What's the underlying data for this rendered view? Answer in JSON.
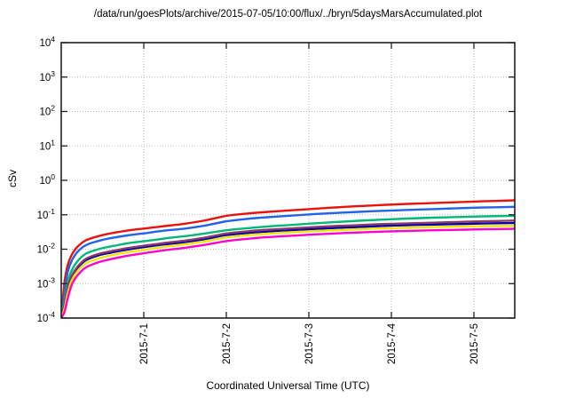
{
  "chart_data": {
    "type": "line",
    "title": "/data/run/goesPlots/archive/2015-07-05/10:00/flux/../bryn/5daysMarsAccumulated.plot",
    "xlabel": "Coordinated Universal Time (UTC)",
    "ylabel": "cSv",
    "y_scale": "log10",
    "ylim_exponents": [
      -4,
      4
    ],
    "ytick_exponents": [
      4,
      3,
      2,
      1,
      0,
      -1,
      -2,
      -3,
      -4
    ],
    "grid": true,
    "legend_position": "none",
    "x_unit_days_origin": "2015-6-30",
    "xlim_days": [
      0,
      5.4946
    ],
    "xticks": [
      {
        "t": 1,
        "label": "2015-7-1"
      },
      {
        "t": 2,
        "label": "2015-7-2"
      },
      {
        "t": 3,
        "label": "2015-7-3"
      },
      {
        "t": 4,
        "label": "2015-7-4"
      },
      {
        "t": 5,
        "label": "2015-7-5"
      }
    ],
    "x_days": [
      0,
      0.04,
      0.08,
      0.13,
      0.2,
      0.3,
      0.45,
      0.6,
      0.8,
      1.0,
      1.25,
      1.5,
      1.75,
      2.0,
      2.25,
      2.5,
      2.75,
      3.0,
      3.3,
      3.6,
      3.9,
      4.2,
      4.5,
      4.8,
      5.1,
      5.49
    ],
    "series": [
      {
        "name": "red-curve",
        "color": "#e8130c",
        "log10_values": [
          -4.0,
          -2.95,
          -2.45,
          -2.15,
          -1.92,
          -1.74,
          -1.62,
          -1.54,
          -1.46,
          -1.4,
          -1.33,
          -1.26,
          -1.16,
          -1.03,
          -0.965,
          -0.915,
          -0.875,
          -0.835,
          -0.79,
          -0.75,
          -0.715,
          -0.685,
          -0.66,
          -0.635,
          -0.61,
          -0.58
        ]
      },
      {
        "name": "blue-curve",
        "color": "#2263e8",
        "log10_values": [
          -4.0,
          -3.25,
          -2.65,
          -2.32,
          -2.07,
          -1.88,
          -1.76,
          -1.68,
          -1.6,
          -1.54,
          -1.46,
          -1.4,
          -1.31,
          -1.19,
          -1.12,
          -1.07,
          -1.03,
          -0.99,
          -0.95,
          -0.915,
          -0.885,
          -0.86,
          -0.835,
          -0.81,
          -0.79,
          -0.77
        ]
      },
      {
        "name": "green-curve",
        "color": "#00b878",
        "log10_values": [
          -4.0,
          -3.5,
          -2.95,
          -2.6,
          -2.34,
          -2.13,
          -2.0,
          -1.92,
          -1.83,
          -1.77,
          -1.69,
          -1.62,
          -1.54,
          -1.45,
          -1.39,
          -1.34,
          -1.3,
          -1.26,
          -1.215,
          -1.175,
          -1.14,
          -1.11,
          -1.085,
          -1.065,
          -1.047,
          -1.03
        ]
      },
      {
        "name": "navy-curve",
        "color": "#0000b0",
        "log10_values": [
          -4.0,
          -3.65,
          -3.15,
          -2.8,
          -2.54,
          -2.32,
          -2.18,
          -2.1,
          -2.01,
          -1.94,
          -1.86,
          -1.79,
          -1.7,
          -1.59,
          -1.53,
          -1.485,
          -1.45,
          -1.42,
          -1.385,
          -1.355,
          -1.325,
          -1.3,
          -1.285,
          -1.27,
          -1.255,
          -1.24
        ]
      },
      {
        "name": "purple-curve",
        "color": "#8b3a66",
        "log10_values": [
          -4.0,
          -3.6,
          -3.1,
          -2.76,
          -2.5,
          -2.28,
          -2.14,
          -2.06,
          -1.97,
          -1.9,
          -1.82,
          -1.75,
          -1.66,
          -1.545,
          -1.48,
          -1.435,
          -1.4,
          -1.365,
          -1.33,
          -1.3,
          -1.27,
          -1.25,
          -1.23,
          -1.21,
          -1.19,
          -1.17
        ]
      },
      {
        "name": "yellow-curve",
        "color": "#f2e500",
        "log10_values": [
          -4.0,
          -3.72,
          -3.27,
          -2.9,
          -2.63,
          -2.41,
          -2.27,
          -2.18,
          -2.09,
          -2.02,
          -1.93,
          -1.86,
          -1.77,
          -1.66,
          -1.595,
          -1.55,
          -1.515,
          -1.48,
          -1.45,
          -1.42,
          -1.395,
          -1.375,
          -1.355,
          -1.34,
          -1.33,
          -1.32
        ]
      },
      {
        "name": "magenta-curve",
        "color": "#ff00cf",
        "log10_values": [
          -4.0,
          -3.82,
          -3.42,
          -3.02,
          -2.75,
          -2.53,
          -2.38,
          -2.29,
          -2.19,
          -2.12,
          -2.03,
          -1.96,
          -1.87,
          -1.765,
          -1.7,
          -1.65,
          -1.615,
          -1.58,
          -1.545,
          -1.515,
          -1.49,
          -1.468,
          -1.45,
          -1.437,
          -1.423,
          -1.41
        ]
      }
    ],
    "style": {
      "frame_color": "#202020",
      "grid_color": "#b8b8b8",
      "text_color": "#000000",
      "background": "#ffffff"
    }
  }
}
